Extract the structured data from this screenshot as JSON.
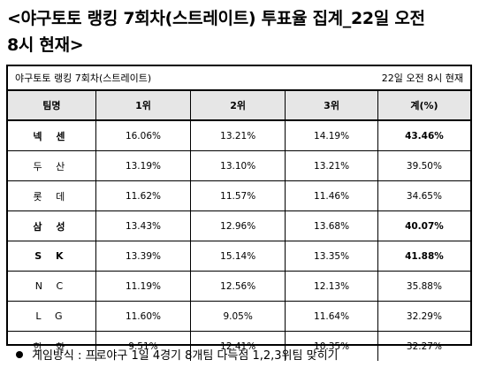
{
  "headline": {
    "line1": "<야구토토 랭킹 7회차(스트레이트) 투표율 집계_22일 오전",
    "line2": "8시 현재>"
  },
  "table": {
    "caption_left": "야구토토 랭킹 7회차(스트레이트)",
    "caption_right": "22일 오전 8시 현재",
    "headers": [
      "팀명",
      "1위",
      "2위",
      "3위",
      "계(%)"
    ],
    "rows": [
      {
        "team": "넥 센",
        "r1": "16.06%",
        "r2": "13.21%",
        "r3": "14.19%",
        "total": "43.46%",
        "highlight": true
      },
      {
        "team": "두 산",
        "r1": "13.19%",
        "r2": "13.10%",
        "r3": "13.21%",
        "total": "39.50%",
        "highlight": false
      },
      {
        "team": "롯 데",
        "r1": "11.62%",
        "r2": "11.57%",
        "r3": "11.46%",
        "total": "34.65%",
        "highlight": false
      },
      {
        "team": "삼 성",
        "r1": "13.43%",
        "r2": "12.96%",
        "r3": "13.68%",
        "total": "40.07%",
        "highlight": true
      },
      {
        "team": "S K",
        "r1": "13.39%",
        "r2": "15.14%",
        "r3": "13.35%",
        "total": "41.88%",
        "highlight": true
      },
      {
        "team": "N C",
        "r1": "11.19%",
        "r2": "12.56%",
        "r3": "12.13%",
        "total": "35.88%",
        "highlight": false
      },
      {
        "team": "L G",
        "r1": "11.60%",
        "r2": "9.05%",
        "r3": "11.64%",
        "total": "32.29%",
        "highlight": false
      },
      {
        "team": "한 화",
        "r1": "9.51%",
        "r2": "12.41%",
        "r3": "10.35%",
        "total": "32.27%",
        "highlight": false
      }
    ]
  },
  "footnote": {
    "bullet_icon": "filled-circle",
    "text": "게임방식 : 프로야구 1일 4경기 8개팀 다득점 1,2,3위팀 맞히기"
  },
  "colors": {
    "header_bg": "#e6e6e6",
    "border": "#000000"
  }
}
